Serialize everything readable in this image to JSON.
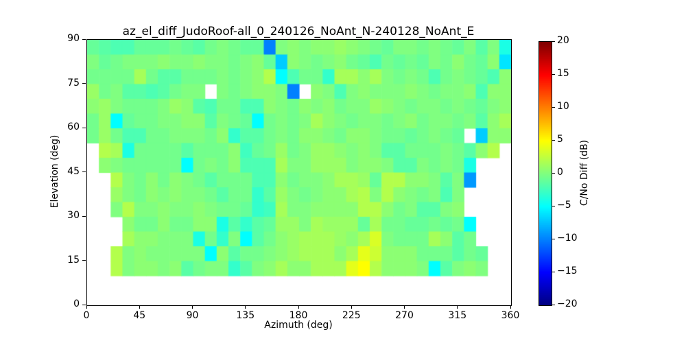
{
  "figure": {
    "title": "az_el_diff_JudoRoof-all_0_240126_NoAnt_N-240128_NoAnt_E",
    "xlabel": "Azimuth (deg)",
    "ylabel": "Elevation (deg)",
    "colorbar_label": "C/No Diff (dB)"
  },
  "chart_data": {
    "type": "heatmap",
    "title": "az_el_diff_JudoRoof-all_0_240126_NoAnt_N-240128_NoAnt_E",
    "xlabel": "Azimuth (deg)",
    "ylabel": "Elevation (deg)",
    "x_range": [
      0,
      360
    ],
    "y_range": [
      0,
      90
    ],
    "x_ticks": [
      0,
      45,
      90,
      135,
      180,
      225,
      270,
      315,
      360
    ],
    "y_ticks": [
      0,
      15,
      30,
      45,
      60,
      75,
      90
    ],
    "grid_on": false,
    "colorbar": {
      "label": "C/No Diff (dB)",
      "min": -20,
      "max": 20,
      "tick_values": [
        20,
        15,
        10,
        5,
        0,
        -5,
        -10,
        -15,
        -20
      ],
      "tick_labels": [
        "20",
        "15",
        "10",
        "5",
        "0",
        "−5",
        "−10",
        "−15",
        "−20"
      ],
      "colormap": "jet"
    },
    "grid": {
      "az_start": 0,
      "az_step": 10,
      "el_top": 90,
      "el_step": 5,
      "rows_order": "elevation band 85-90 first, descending to 10-15; null = no data (white)",
      "values": [
        [
          -1,
          -1.5,
          -2,
          -2,
          -1,
          -1,
          -1,
          -0.5,
          -1,
          -1.5,
          -0.5,
          0,
          -0.5,
          -1,
          -1,
          -10,
          0,
          0.5,
          0,
          0.5,
          0.5,
          1,
          0.5,
          0,
          -0.5,
          -1,
          0,
          0,
          -0.5,
          0,
          -0.5,
          -1,
          0,
          -1.5,
          0,
          -4
        ],
        [
          0,
          -1,
          -0.5,
          0,
          0,
          0,
          0.5,
          0,
          0,
          0.5,
          0,
          0,
          -0.5,
          0,
          0.5,
          -1,
          -7,
          0.5,
          0,
          -0.5,
          0,
          0.5,
          -0.5,
          -1,
          -2,
          -0.5,
          -1,
          -0.5,
          -1,
          0,
          -0.5,
          0.5,
          -0.5,
          -1,
          0.5,
          -6
        ],
        [
          -0.5,
          -0.5,
          -0.5,
          -0.5,
          1.5,
          -0.5,
          -1.5,
          -1.5,
          -0.5,
          -0.5,
          -0.5,
          0,
          -0.5,
          0,
          0.5,
          2,
          -5,
          -2,
          -0.5,
          -0.5,
          -3,
          1.5,
          1.5,
          0.5,
          1.5,
          0,
          -0.5,
          0,
          -0.5,
          -2,
          -0.5,
          0,
          -0.5,
          -1,
          -2,
          0.5
        ],
        [
          1,
          -0.5,
          0,
          -1.5,
          -1.5,
          -2,
          -1.5,
          -0.5,
          0,
          0,
          null,
          0,
          -0.5,
          0,
          0.5,
          0.5,
          0,
          -10,
          null,
          0.5,
          0,
          -2,
          0,
          0.5,
          0,
          0,
          0,
          0.5,
          0,
          -0.5,
          0,
          0,
          0.5,
          -2,
          0.5,
          0.5
        ],
        [
          0.5,
          1,
          0,
          -0.5,
          -0.5,
          -0.5,
          0,
          1,
          0.5,
          -1.5,
          -2,
          -0.5,
          -0.5,
          -2,
          -2,
          0.5,
          0,
          -0.5,
          0.5,
          0,
          0.5,
          -0.5,
          0,
          0,
          1,
          0.5,
          0,
          -0.5,
          0,
          0,
          -0.5,
          0,
          -0.5,
          -1,
          0,
          0.5
        ],
        [
          -0.5,
          1,
          -5,
          -1,
          -0.5,
          -0.5,
          0,
          0,
          0.5,
          0.5,
          -1.5,
          0,
          -0.5,
          -1,
          -5,
          -0.5,
          0,
          -0.5,
          0,
          1.5,
          0.5,
          0,
          -0.5,
          0,
          0,
          -0.5,
          0,
          0.5,
          -0.5,
          0,
          0,
          -0.5,
          0,
          -1.5,
          0.5,
          1.5
        ],
        [
          -0.5,
          1,
          -0.5,
          -2,
          -2,
          -0.5,
          -0.5,
          0,
          0,
          0,
          -0.5,
          0.5,
          -3,
          -1.5,
          -1.5,
          -0.5,
          0,
          -0.5,
          0.5,
          0.5,
          0,
          -0.5,
          0.5,
          0.5,
          0,
          -0.5,
          -0.5,
          -1,
          -0.5,
          0,
          -0.5,
          -1,
          null,
          -7,
          0.5,
          0.5
        ],
        [
          null,
          2,
          1.5,
          -4,
          -0.5,
          -0.5,
          -0.5,
          -0.5,
          -1.5,
          -0.5,
          -0.5,
          -0.5,
          0.5,
          -2.5,
          -1,
          -0.5,
          1,
          -0.5,
          0,
          1,
          1,
          0.5,
          0,
          0.5,
          0,
          -1.5,
          -1.5,
          -0.5,
          -0.5,
          -0.5,
          0,
          -0.5,
          -1.5,
          0.5,
          2,
          null
        ],
        [
          null,
          0.5,
          0,
          -0.5,
          -0.5,
          -0.5,
          -0.5,
          -0.5,
          -5,
          -0.5,
          0,
          -0.5,
          0.5,
          -2,
          -2,
          -2,
          1.5,
          0,
          0,
          1,
          1,
          1,
          0,
          0.5,
          0.5,
          0,
          -1.5,
          -1.5,
          0,
          -0.5,
          0,
          -0.5,
          -4,
          null,
          null,
          null
        ],
        [
          null,
          null,
          2,
          0,
          -0.5,
          0.5,
          -0.5,
          0.5,
          0,
          -0.5,
          -1.5,
          -0.5,
          -0.5,
          -0.5,
          -2,
          -2,
          0.5,
          -0.5,
          0,
          0,
          0.5,
          1.5,
          1.5,
          1,
          -1,
          2,
          2,
          0.5,
          0.5,
          0,
          -1.5,
          0,
          -9,
          null,
          null,
          null
        ],
        [
          null,
          null,
          1,
          0,
          -0.5,
          0.5,
          0,
          0.5,
          0,
          0,
          -0.5,
          -1.5,
          -0.5,
          -0.5,
          -3,
          -1.5,
          1,
          0,
          -0.5,
          0,
          0.5,
          0.5,
          1.5,
          2,
          0,
          2,
          0.5,
          0,
          -0.5,
          0,
          -2,
          0,
          null,
          null,
          null,
          null
        ],
        [
          null,
          null,
          0,
          2,
          0,
          0,
          0.5,
          0,
          0,
          0.5,
          0,
          -0.5,
          -0.5,
          -1,
          -3,
          -2.5,
          1.5,
          0,
          0,
          0.5,
          0.5,
          0.5,
          0.5,
          2,
          2,
          0.5,
          -0.5,
          0,
          -1.5,
          -1.5,
          0,
          0.5,
          null,
          null,
          null,
          null
        ],
        [
          null,
          null,
          null,
          0.5,
          -0.5,
          -0.5,
          0.5,
          -0.5,
          -0.5,
          0.5,
          0.5,
          -4,
          -1.5,
          -3,
          -1.5,
          -1,
          1,
          1,
          0,
          1.5,
          1,
          1,
          1,
          -1,
          1.5,
          -0.5,
          -0.5,
          -1,
          -1,
          -0.5,
          -1,
          -0.5,
          -5,
          null,
          null,
          null
        ],
        [
          null,
          null,
          null,
          1.5,
          0.5,
          0.5,
          0,
          0,
          0,
          -4,
          -0.5,
          -3,
          0,
          -5,
          -1.5,
          -0.5,
          0.5,
          1,
          1.5,
          1.5,
          1.5,
          1,
          0.5,
          1.5,
          3.5,
          0,
          -0.5,
          -0.5,
          -0.5,
          1.5,
          0.5,
          -1.5,
          -0.5,
          null,
          null,
          null
        ],
        [
          null,
          null,
          2,
          0,
          0.5,
          0,
          0,
          0,
          0,
          0,
          -5,
          0.5,
          -1.5,
          -0.5,
          -0.5,
          0,
          0.5,
          1,
          1.5,
          1.5,
          1.5,
          0.5,
          1.5,
          4,
          3,
          0.5,
          0.5,
          0.5,
          -0.5,
          -0.5,
          -0.5,
          -1.5,
          -0.5,
          -1,
          null,
          null
        ],
        [
          null,
          null,
          2,
          0,
          0.5,
          0.5,
          0,
          0.5,
          -1.5,
          -0.5,
          0,
          0,
          -3,
          -1.5,
          0,
          0.5,
          1.5,
          0.5,
          0.5,
          1.5,
          1.5,
          1.5,
          4,
          5,
          2,
          0.5,
          0.5,
          0.5,
          0,
          -5,
          -1.5,
          0,
          0.5,
          0,
          null,
          null
        ]
      ]
    }
  }
}
